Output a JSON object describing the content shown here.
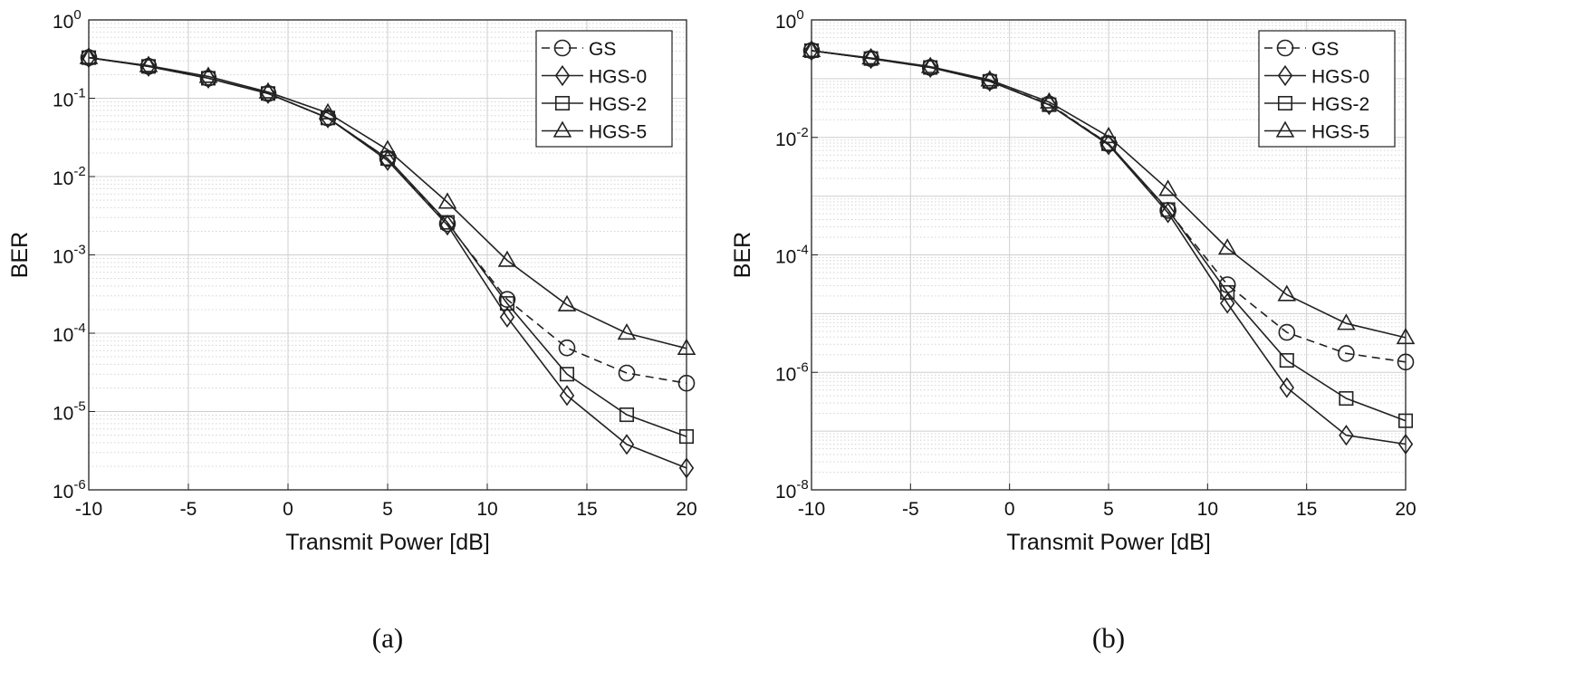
{
  "chart_data": [
    {
      "type": "line",
      "panel_caption": "(a)",
      "xlabel": "Transmit Power [dB]",
      "ylabel": "BER",
      "yscale": "log",
      "xlim": [
        -10,
        20
      ],
      "ylim": [
        1e-06,
        1
      ],
      "xticks": [
        -10,
        -5,
        0,
        5,
        10,
        15,
        20
      ],
      "xtick_labels": [
        "-10",
        "-5",
        "0",
        "5",
        "10",
        "15",
        "20"
      ],
      "yticks": [
        {
          "value": 1,
          "base": "10",
          "exp": "0"
        },
        {
          "value": 0.1,
          "base": "10",
          "exp": "-1"
        },
        {
          "value": 0.01,
          "base": "10",
          "exp": "-2"
        },
        {
          "value": 0.001,
          "base": "10",
          "exp": "-3"
        },
        {
          "value": 0.0001,
          "base": "10",
          "exp": "-4"
        },
        {
          "value": 1e-05,
          "base": "10",
          "exp": "-5"
        },
        {
          "value": 1e-06,
          "base": "10",
          "exp": "-6"
        }
      ],
      "grid": true,
      "legend_position": "top-right",
      "x": [
        -10,
        -7,
        -4,
        -1,
        2,
        5,
        8,
        11,
        14,
        17,
        20
      ],
      "series": [
        {
          "name": "GS",
          "marker": "circle",
          "line": "dashed",
          "values": [
            0.33,
            0.255,
            0.18,
            0.115,
            0.056,
            0.017,
            0.0025,
            0.00027,
            6.5e-05,
            3.1e-05,
            2.3e-05
          ]
        },
        {
          "name": "HGS-0",
          "marker": "diamond",
          "line": "solid",
          "values": [
            0.33,
            0.255,
            0.18,
            0.115,
            0.056,
            0.016,
            0.0024,
            0.00016,
            1.6e-05,
            3.8e-06,
            1.9e-06
          ]
        },
        {
          "name": "HGS-2",
          "marker": "square",
          "line": "solid",
          "values": [
            0.33,
            0.255,
            0.18,
            0.115,
            0.056,
            0.017,
            0.0026,
            0.00024,
            3e-05,
            9.1e-06,
            4.8e-06
          ]
        },
        {
          "name": "HGS-5",
          "marker": "triangle",
          "line": "solid",
          "values": [
            0.33,
            0.26,
            0.19,
            0.12,
            0.065,
            0.022,
            0.0047,
            0.00085,
            0.00023,
            0.0001,
            6.4e-05
          ]
        }
      ]
    },
    {
      "type": "line",
      "panel_caption": "(b)",
      "xlabel": "Transmit Power [dB]",
      "ylabel": "BER",
      "yscale": "log",
      "xlim": [
        -10,
        20
      ],
      "ylim": [
        1e-08,
        1
      ],
      "xticks": [
        -10,
        -5,
        0,
        5,
        10,
        15,
        20
      ],
      "xtick_labels": [
        "-10",
        "-5",
        "0",
        "5",
        "10",
        "15",
        "20"
      ],
      "yticks": [
        {
          "value": 1,
          "base": "10",
          "exp": "0"
        },
        {
          "value": 0.01,
          "base": "10",
          "exp": "-2"
        },
        {
          "value": 0.0001,
          "base": "10",
          "exp": "-4"
        },
        {
          "value": 1e-06,
          "base": "10",
          "exp": "-6"
        },
        {
          "value": 1e-08,
          "base": "10",
          "exp": "-8"
        }
      ],
      "grid": true,
      "legend_position": "top-right",
      "x": [
        -10,
        -7,
        -4,
        -1,
        2,
        5,
        8,
        11,
        14,
        17,
        20
      ],
      "series": [
        {
          "name": "GS",
          "marker": "circle",
          "line": "dashed",
          "values": [
            0.3,
            0.22,
            0.155,
            0.09,
            0.037,
            0.0078,
            0.00057,
            3.1e-05,
            4.8e-06,
            2.1e-06,
            1.5e-06
          ]
        },
        {
          "name": "HGS-0",
          "marker": "diamond",
          "line": "solid",
          "values": [
            0.3,
            0.22,
            0.155,
            0.09,
            0.036,
            0.0075,
            0.00052,
            1.5e-05,
            5.5e-07,
            8.5e-08,
            6e-08
          ]
        },
        {
          "name": "HGS-2",
          "marker": "square",
          "line": "solid",
          "values": [
            0.3,
            0.22,
            0.155,
            0.09,
            0.036,
            0.0078,
            0.00059,
            2.3e-05,
            1.6e-06,
            3.6e-07,
            1.5e-07
          ]
        },
        {
          "name": "HGS-5",
          "marker": "triangle",
          "line": "solid",
          "values": [
            0.3,
            0.225,
            0.16,
            0.095,
            0.04,
            0.0103,
            0.0013,
            0.00013,
            2.1e-05,
            6.8e-06,
            3.9e-06
          ]
        }
      ]
    }
  ]
}
